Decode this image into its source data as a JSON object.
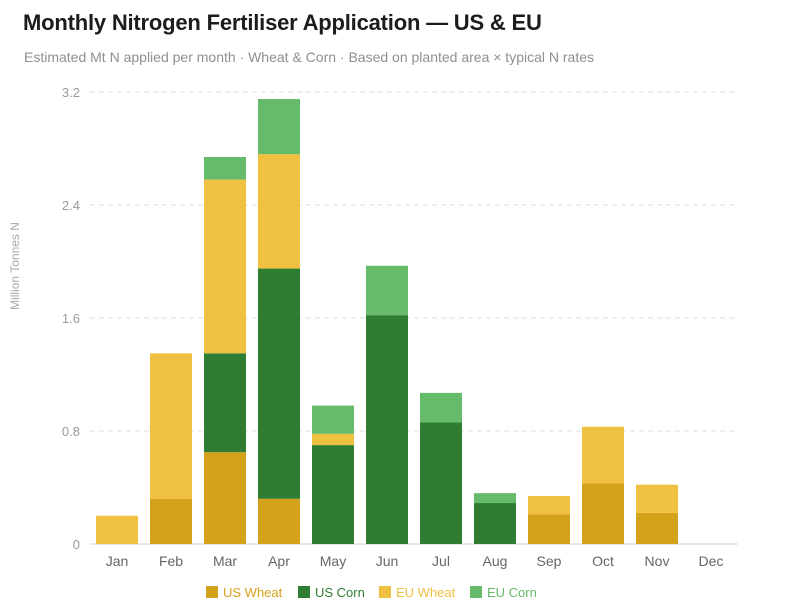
{
  "title": "Monthly Nitrogen Fertiliser Application — US & EU",
  "subtitle": "Estimated Mt N applied per month · Wheat & Corn · Based on planted area × typical N rates",
  "chart_data": {
    "type": "bar",
    "stacked": true,
    "categories": [
      "Jan",
      "Feb",
      "Mar",
      "Apr",
      "May",
      "Jun",
      "Jul",
      "Aug",
      "Sep",
      "Oct",
      "Nov",
      "Dec"
    ],
    "series": [
      {
        "name": "US Wheat",
        "color": "#d4a21a",
        "values": [
          0.0,
          0.32,
          0.65,
          0.32,
          0.0,
          0.0,
          0.0,
          0.0,
          0.21,
          0.43,
          0.22,
          0.0
        ]
      },
      {
        "name": "US Corn",
        "color": "#2e7d32",
        "values": [
          0.0,
          0.0,
          0.7,
          1.63,
          0.7,
          1.62,
          0.86,
          0.29,
          0.0,
          0.0,
          0.0,
          0.0
        ]
      },
      {
        "name": "EU Wheat",
        "color": "#f0c040",
        "values": [
          0.2,
          1.03,
          1.23,
          0.81,
          0.08,
          0.0,
          0.0,
          0.0,
          0.13,
          0.4,
          0.2,
          0.0
        ]
      },
      {
        "name": "EU Corn",
        "color": "#66bb6a",
        "values": [
          0.0,
          0.0,
          0.16,
          0.39,
          0.2,
          0.35,
          0.21,
          0.07,
          0.0,
          0.0,
          0.0,
          0.0
        ]
      }
    ],
    "ylabel": "Million Tonnes N",
    "xlabel": "",
    "ylim": [
      0,
      3.2
    ],
    "yticks": [
      "0",
      "0.8",
      "1.6",
      "2.4",
      "3.2"
    ],
    "ytick_values": [
      0,
      0.8,
      1.6,
      2.4,
      3.2
    ],
    "grid": true,
    "legend_position": "bottom-center"
  }
}
